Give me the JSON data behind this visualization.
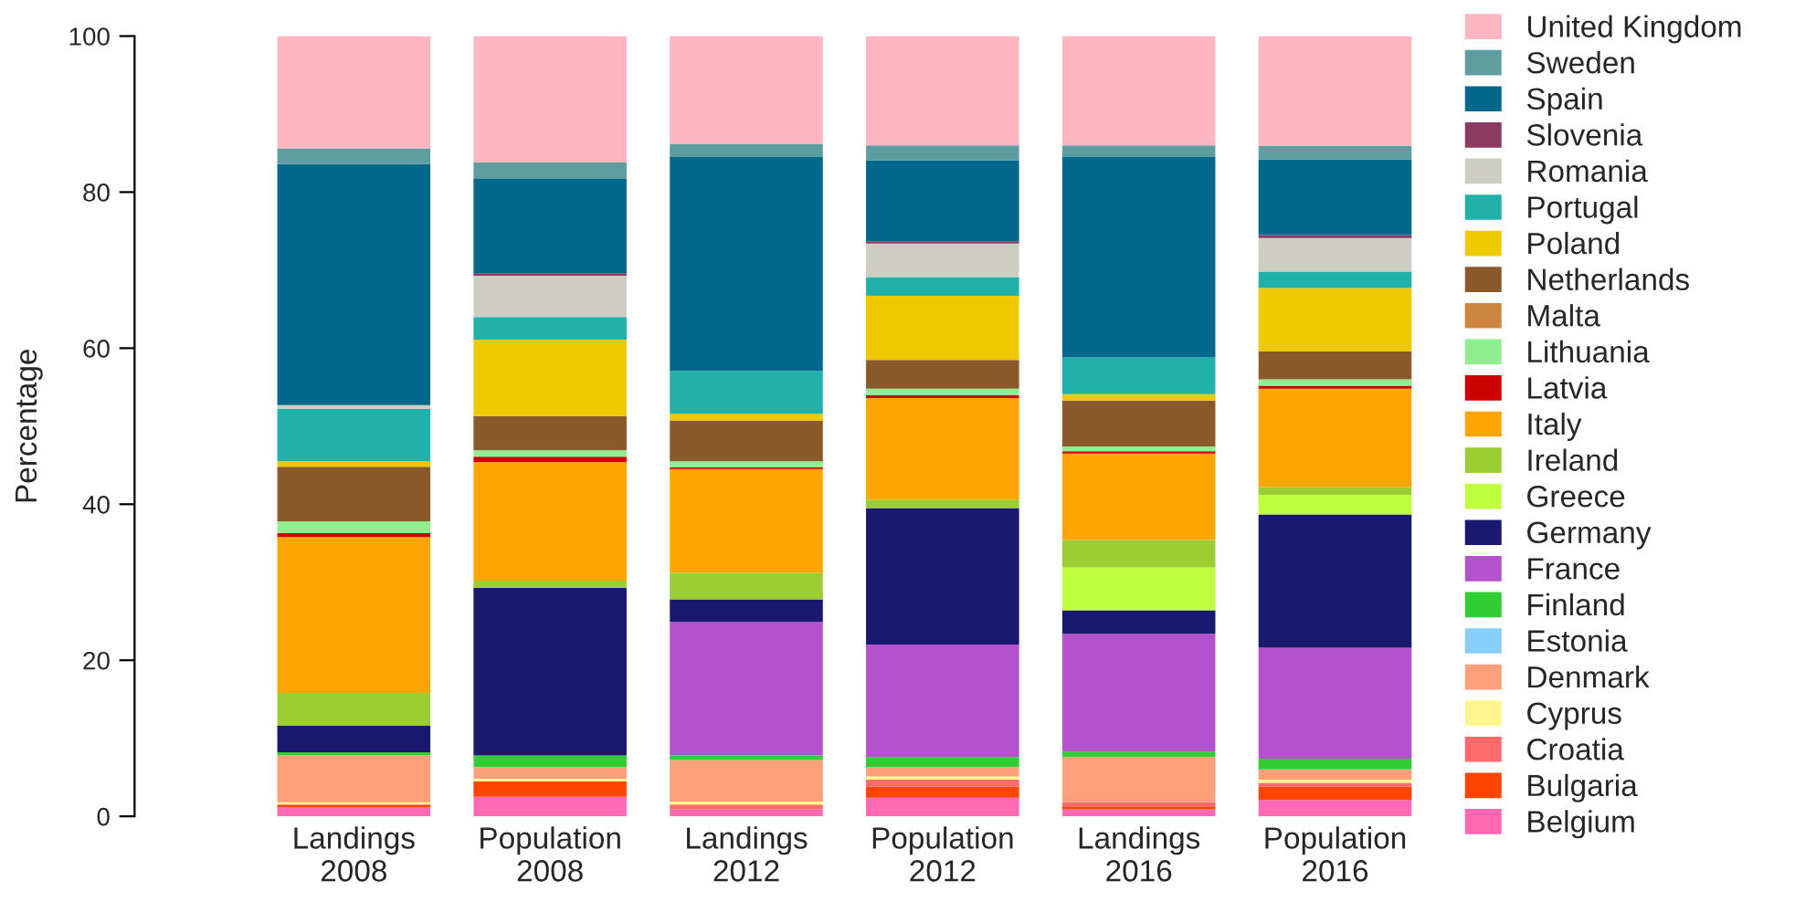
{
  "chart_data": {
    "type": "bar",
    "stacked": true,
    "ylabel": "Percentage",
    "categories": [
      "Landings\n2008",
      "Population\n2008",
      "Landings\n2012",
      "Population\n2012",
      "Landings\n2016",
      "Population\n2016"
    ],
    "ylim": [
      0,
      100
    ],
    "yticks": [
      0,
      20,
      40,
      60,
      80,
      100
    ],
    "legend": "right",
    "grid": false,
    "series": [
      {
        "name": "Belgium",
        "color": "#ff69b4",
        "values": [
          1.2,
          2.5,
          0.9,
          2.4,
          0.9,
          2.1
        ]
      },
      {
        "name": "Bulgaria",
        "color": "#ff4500",
        "values": [
          0.3,
          2.0,
          0,
          1.4,
          0.3,
          1.7
        ]
      },
      {
        "name": "Croatia",
        "color": "#ff6a6a",
        "values": [
          0,
          0,
          0.6,
          0.9,
          0.6,
          0.5
        ]
      },
      {
        "name": "Cyprus",
        "color": "#fff68f",
        "values": [
          0.3,
          0.3,
          0.4,
          0.4,
          0,
          0.4
        ]
      },
      {
        "name": "Denmark",
        "color": "#ffa07a",
        "values": [
          6.0,
          1.5,
          5.3,
          1.2,
          5.8,
          1.3
        ]
      },
      {
        "name": "Estonia",
        "color": "#87cefa",
        "values": [
          0,
          0,
          0,
          0,
          0,
          0
        ]
      },
      {
        "name": "Finland",
        "color": "#32cd32",
        "values": [
          0.4,
          1.5,
          0.6,
          1.3,
          0.7,
          1.4
        ]
      },
      {
        "name": "France",
        "color": "#b452cd",
        "values": [
          0,
          0,
          17.1,
          14.4,
          15.1,
          14.2
        ]
      },
      {
        "name": "Germany",
        "color": "#191970",
        "values": [
          3.4,
          21.5,
          2.9,
          17.5,
          3.0,
          17.1
        ]
      },
      {
        "name": "Greece",
        "color": "#c0ff3e",
        "values": [
          0,
          0,
          0,
          0,
          5.5,
          2.5
        ]
      },
      {
        "name": "Ireland",
        "color": "#9acd32",
        "values": [
          4.2,
          0.9,
          3.4,
          1.1,
          3.5,
          1.0
        ]
      },
      {
        "name": "Italy",
        "color": "#ffa500",
        "values": [
          20.0,
          15.2,
          13.3,
          13.0,
          11.1,
          12.6
        ]
      },
      {
        "name": "Latvia",
        "color": "#cd0000",
        "values": [
          0.5,
          0.7,
          0.2,
          0.4,
          0.3,
          0.4
        ]
      },
      {
        "name": "Lithuania",
        "color": "#90ee90",
        "values": [
          1.5,
          0.8,
          0.8,
          0.8,
          0.6,
          0.8
        ]
      },
      {
        "name": "Malta",
        "color": "#cd853f",
        "values": [
          0,
          0,
          0,
          0,
          0,
          0
        ]
      },
      {
        "name": "Netherlands",
        "color": "#8b5a2b",
        "values": [
          7.0,
          4.4,
          5.2,
          3.7,
          5.9,
          3.6
        ]
      },
      {
        "name": "Poland",
        "color": "#eec900",
        "values": [
          0.7,
          9.8,
          0.9,
          8.2,
          0.8,
          8.1
        ]
      },
      {
        "name": "Portugal",
        "color": "#20b2aa",
        "values": [
          6.7,
          2.9,
          5.5,
          2.4,
          4.7,
          2.1
        ]
      },
      {
        "name": "Romania",
        "color": "#cdcdc1",
        "values": [
          0.5,
          5.3,
          0,
          4.3,
          0,
          4.3
        ]
      },
      {
        "name": "Slovenia",
        "color": "#8b3a62",
        "values": [
          0,
          0.3,
          0,
          0.3,
          0,
          0.4
        ]
      },
      {
        "name": "Spain",
        "color": "#00688b",
        "values": [
          30.9,
          12.1,
          27.4,
          10.4,
          25.7,
          9.7
        ]
      },
      {
        "name": "Sweden",
        "color": "#5f9ea0",
        "values": [
          2.0,
          2.1,
          1.7,
          1.9,
          1.5,
          1.7
        ]
      },
      {
        "name": "United Kingdom",
        "color": "#ffb6c1",
        "values": [
          14.4,
          16.2,
          13.8,
          14.0,
          14.0,
          14.1
        ]
      }
    ]
  }
}
